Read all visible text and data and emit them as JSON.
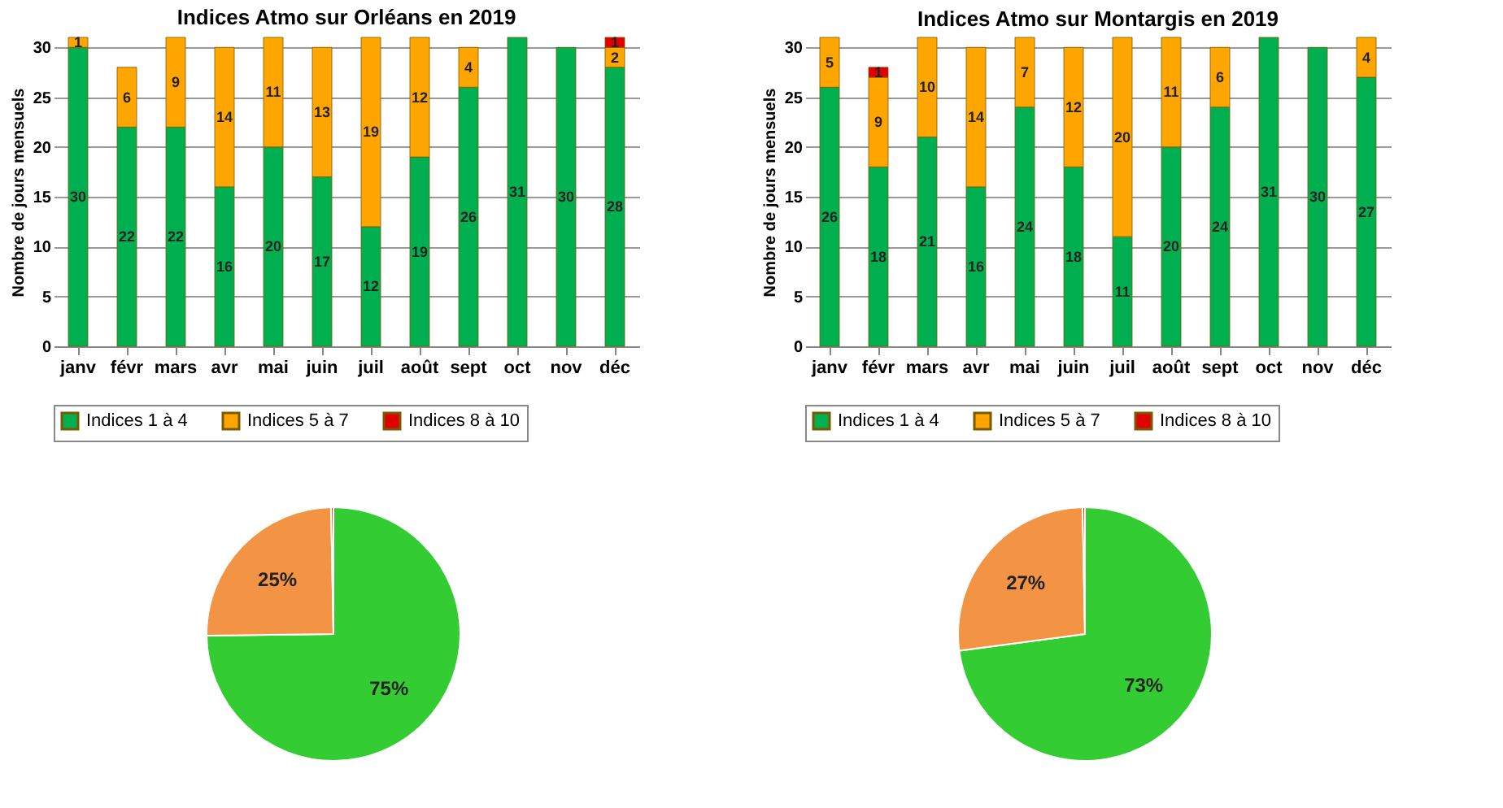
{
  "chart_data": [
    {
      "type": "bar",
      "stacked": true,
      "title": "Indices Atmo sur Orléans en 2019",
      "ylabel": "Nombre de jours mensuels",
      "categories": [
        "janv",
        "févr",
        "mars",
        "avr",
        "mai",
        "juin",
        "juil",
        "août",
        "sept",
        "oct",
        "nov",
        "déc"
      ],
      "series": [
        {
          "name": "Indices 1 à 4",
          "color": "#00b050",
          "values": [
            30,
            22,
            22,
            16,
            20,
            17,
            12,
            19,
            26,
            31,
            30,
            28
          ]
        },
        {
          "name": "Indices 5 à 7",
          "color": "#ffa500",
          "values": [
            1,
            6,
            9,
            14,
            11,
            13,
            19,
            12,
            4,
            null,
            null,
            2
          ]
        },
        {
          "name": "Indices 8 à 10",
          "color": "#e00000",
          "values": [
            null,
            null,
            null,
            null,
            null,
            null,
            null,
            null,
            null,
            null,
            null,
            1
          ]
        }
      ],
      "ylim": [
        0,
        31
      ],
      "yticks": [
        0,
        5,
        10,
        15,
        20,
        25,
        30
      ],
      "grid": "y",
      "legend": "bottom",
      "data_labels": true
    },
    {
      "type": "bar",
      "stacked": true,
      "title": "Indices Atmo sur Montargis en 2019",
      "ylabel": "Nombre de jours mensuels",
      "categories": [
        "janv",
        "févr",
        "mars",
        "avr",
        "mai",
        "juin",
        "juil",
        "août",
        "sept",
        "oct",
        "nov",
        "déc"
      ],
      "series": [
        {
          "name": "Indices 1 à 4",
          "color": "#00b050",
          "values": [
            26,
            18,
            21,
            16,
            24,
            18,
            11,
            20,
            24,
            31,
            30,
            27
          ]
        },
        {
          "name": "Indices 5 à 7",
          "color": "#ffa500",
          "values": [
            5,
            9,
            10,
            14,
            7,
            12,
            20,
            11,
            6,
            null,
            null,
            4
          ]
        },
        {
          "name": "Indices 8 à 10",
          "color": "#e00000",
          "values": [
            null,
            1,
            null,
            null,
            null,
            null,
            null,
            null,
            null,
            null,
            null,
            null
          ]
        }
      ],
      "ylim": [
        0,
        31
      ],
      "yticks": [
        0,
        5,
        10,
        15,
        20,
        25,
        30
      ],
      "grid": "y",
      "legend": "bottom",
      "data_labels": true
    },
    {
      "type": "pie",
      "categories": [
        null,
        null,
        null
      ],
      "values": [
        74.8,
        24.9,
        0.3
      ],
      "colors": [
        "#33cc33",
        "#f29444",
        "#e02020"
      ],
      "value_labels": [
        "75%",
        "25%",
        null
      ]
    },
    {
      "type": "pie",
      "categories": [
        null,
        null,
        null
      ],
      "values": [
        72.9,
        26.8,
        0.3
      ],
      "colors": [
        "#33cc33",
        "#f29444",
        "#e02020"
      ],
      "value_labels": [
        "73%",
        "27%",
        null
      ]
    }
  ]
}
